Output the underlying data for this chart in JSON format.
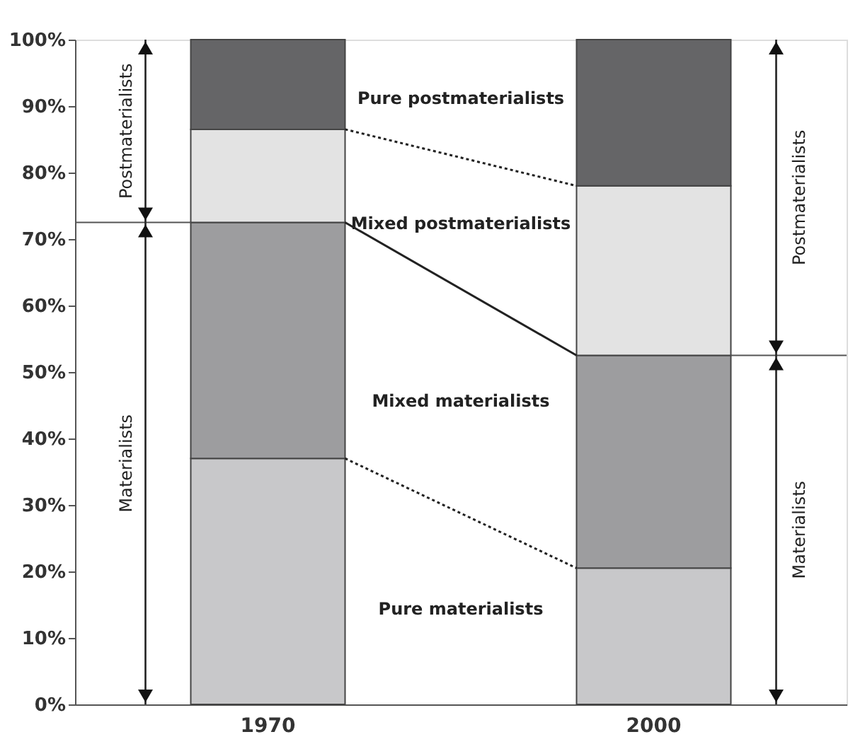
{
  "chart_data": {
    "type": "bar",
    "stacked": true,
    "categories": [
      "1970",
      "2000"
    ],
    "series": [
      {
        "name": "Pure materialists",
        "color": "#c8c8ca",
        "values": [
          37,
          20.5
        ]
      },
      {
        "name": "Mixed materialists",
        "color": "#9d9d9f",
        "values": [
          35.5,
          32
        ]
      },
      {
        "name": "Mixed postmaterialists",
        "color": "#e3e3e3",
        "values": [
          14,
          25.5
        ]
      },
      {
        "name": "Pure postmaterialists",
        "color": "#656567",
        "values": [
          13.5,
          22
        ]
      }
    ],
    "ylim": [
      0,
      100
    ],
    "yticks": [
      {
        "value": 0,
        "label": "0%"
      },
      {
        "value": 10,
        "label": "10%"
      },
      {
        "value": 20,
        "label": "20%"
      },
      {
        "value": 30,
        "label": "30%"
      },
      {
        "value": 40,
        "label": "40%"
      },
      {
        "value": 50,
        "label": "50%"
      },
      {
        "value": 60,
        "label": "60%"
      },
      {
        "value": 70,
        "label": "70%"
      },
      {
        "value": 80,
        "label": "80%"
      },
      {
        "value": 90,
        "label": "90%"
      },
      {
        "value": 100,
        "label": "100%"
      }
    ],
    "grid": false,
    "ref_lines": [
      {
        "axis": "y",
        "value": 72.5,
        "color": "#555555"
      },
      {
        "axis": "y",
        "value": 52.5,
        "color": "#555555"
      }
    ],
    "annotations": [
      "Postmaterialists",
      "Materialists",
      "Postmaterialists",
      "Materialists"
    ]
  }
}
